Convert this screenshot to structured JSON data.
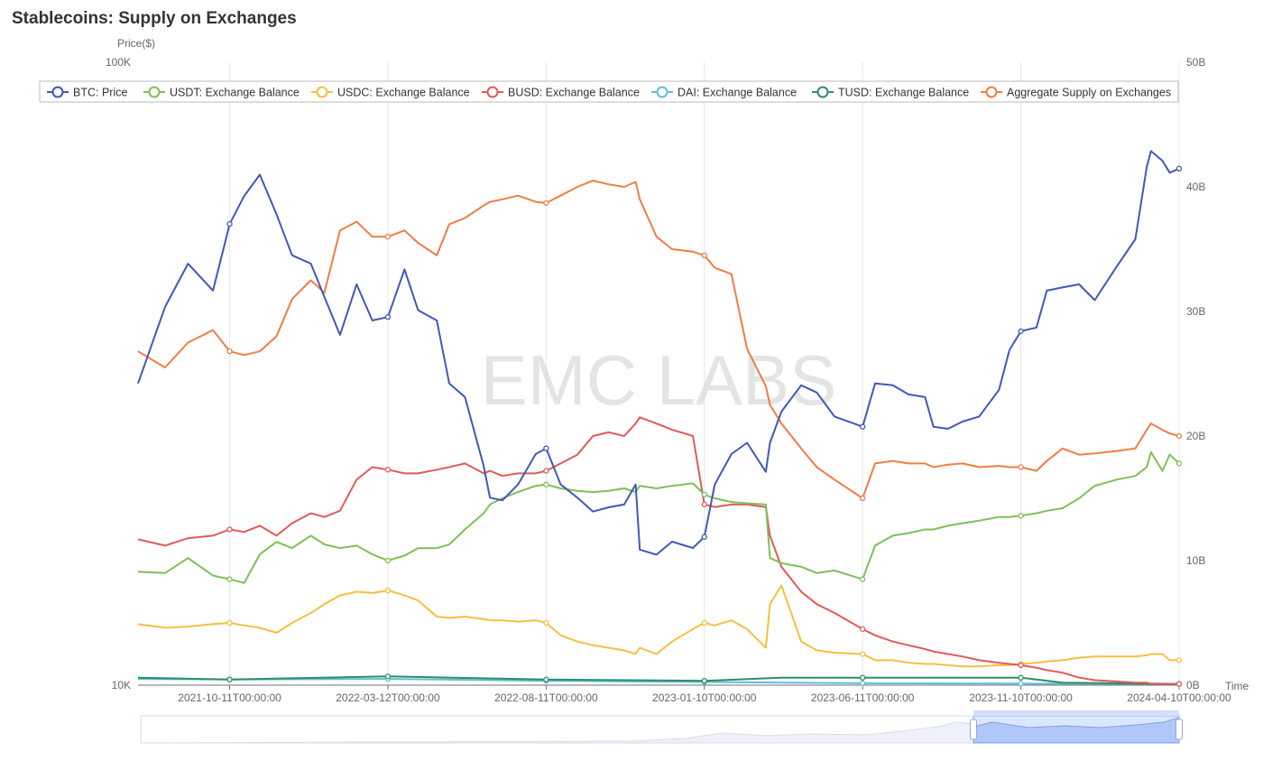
{
  "page": {
    "title": "Stablecoins: Supply on Exchanges",
    "watermark": "EMC LABS"
  },
  "chart_data": {
    "type": "line",
    "title": "Stablecoins: Supply on Exchanges",
    "xlabel": "Time",
    "ylabel_left": "Price($)",
    "y_left": {
      "scale": "log",
      "range": [
        10000,
        100000
      ],
      "ticks": [
        "10K",
        "100K"
      ]
    },
    "y_right": {
      "scale": "linear",
      "range": [
        0,
        50
      ],
      "unit": "B",
      "ticks": [
        "0B",
        "10B",
        "20B",
        "30B",
        "40B",
        "50B"
      ]
    },
    "x_ticks": [
      "2021-10-11T00:00:00",
      "2022-03-12T00:00:00",
      "2022-08-11T00:00:00",
      "2023-01-10T00:00:00",
      "2023-06-11T00:00:00",
      "2023-11-10T00:00:00",
      "2024-04-10T00:00:00"
    ],
    "x_range": [
      "2021-07-15",
      "2024-04-10"
    ],
    "grid": "vertical",
    "legend_position": "top",
    "colors": {
      "btc": "#4059b5",
      "usdt": "#7ec058",
      "usdc": "#f5bf3f",
      "busd": "#e05a5a",
      "dai": "#5fbfd9",
      "tusd": "#2e8f66",
      "agg": "#f07d45"
    },
    "series": [
      {
        "name": "BTC: Price",
        "axis": "left",
        "color": "#4059b5",
        "x": [
          "2021-07-15",
          "2021-08-10",
          "2021-09-01",
          "2021-09-25",
          "2021-10-11",
          "2021-10-25",
          "2021-11-09",
          "2021-11-25",
          "2021-12-10",
          "2021-12-28",
          "2022-01-10",
          "2022-01-25",
          "2022-02-10",
          "2022-02-25",
          "2022-03-12",
          "2022-03-28",
          "2022-04-10",
          "2022-04-28",
          "2022-05-10",
          "2022-05-25",
          "2022-06-12",
          "2022-06-18",
          "2022-06-30",
          "2022-07-15",
          "2022-08-01",
          "2022-08-11",
          "2022-08-25",
          "2022-09-10",
          "2022-09-25",
          "2022-10-10",
          "2022-10-25",
          "2022-11-05",
          "2022-11-09",
          "2022-11-25",
          "2022-12-10",
          "2022-12-30",
          "2023-01-10",
          "2023-01-20",
          "2023-02-05",
          "2023-02-20",
          "2023-03-10",
          "2023-03-14",
          "2023-03-25",
          "2023-04-13",
          "2023-04-28",
          "2023-05-15",
          "2023-06-11",
          "2023-06-23",
          "2023-07-10",
          "2023-07-25",
          "2023-08-10",
          "2023-08-18",
          "2023-09-01",
          "2023-09-15",
          "2023-10-01",
          "2023-10-20",
          "2023-10-30",
          "2023-11-10",
          "2023-11-25",
          "2023-12-05",
          "2023-12-20",
          "2024-01-05",
          "2024-01-20",
          "2024-02-10",
          "2024-02-28",
          "2024-03-10",
          "2024-03-14",
          "2024-03-25",
          "2024-04-01",
          "2024-04-10"
        ],
        "values": [
          30500,
          40500,
          47500,
          43000,
          55000,
          61000,
          66000,
          57000,
          49000,
          47500,
          42000,
          36500,
          44000,
          38500,
          39000,
          46500,
          40000,
          38500,
          30500,
          29000,
          22500,
          20000,
          19800,
          21000,
          23500,
          24000,
          21000,
          20000,
          19000,
          19300,
          19500,
          21000,
          16500,
          16200,
          17000,
          16600,
          17300,
          21000,
          23500,
          24500,
          22000,
          24500,
          27500,
          30300,
          29500,
          27000,
          26000,
          30500,
          30300,
          29300,
          29000,
          26000,
          25800,
          26500,
          27000,
          29800,
          34500,
          37000,
          37500,
          43000,
          43500,
          44000,
          41500,
          47000,
          52000,
          68000,
          72000,
          69500,
          66500,
          67500
        ]
      },
      {
        "name": "USDT: Exchange Balance",
        "axis": "right",
        "color": "#7ec058",
        "x": [
          "2021-07-15",
          "2021-08-10",
          "2021-09-01",
          "2021-09-25",
          "2021-10-11",
          "2021-10-25",
          "2021-11-09",
          "2021-11-25",
          "2021-12-10",
          "2021-12-28",
          "2022-01-10",
          "2022-01-25",
          "2022-02-10",
          "2022-02-25",
          "2022-03-12",
          "2022-03-28",
          "2022-04-10",
          "2022-04-28",
          "2022-05-10",
          "2022-05-25",
          "2022-06-12",
          "2022-06-18",
          "2022-06-30",
          "2022-07-15",
          "2022-08-01",
          "2022-08-11",
          "2022-08-25",
          "2022-09-10",
          "2022-09-25",
          "2022-10-10",
          "2022-10-25",
          "2022-11-05",
          "2022-11-09",
          "2022-11-25",
          "2022-12-10",
          "2022-12-30",
          "2023-01-10",
          "2023-01-20",
          "2023-02-05",
          "2023-02-20",
          "2023-03-10",
          "2023-03-14",
          "2023-03-25",
          "2023-04-13",
          "2023-04-28",
          "2023-05-15",
          "2023-06-11",
          "2023-06-23",
          "2023-07-10",
          "2023-07-25",
          "2023-08-10",
          "2023-08-18",
          "2023-09-01",
          "2023-09-15",
          "2023-10-01",
          "2023-10-20",
          "2023-10-30",
          "2023-11-10",
          "2023-11-25",
          "2023-12-05",
          "2023-12-20",
          "2024-01-05",
          "2024-01-20",
          "2024-02-10",
          "2024-02-28",
          "2024-03-10",
          "2024-03-14",
          "2024-03-25",
          "2024-04-01",
          "2024-04-10"
        ],
        "values": [
          9.1,
          9.0,
          10.2,
          8.8,
          8.5,
          8.2,
          10.5,
          11.5,
          11.0,
          12.0,
          11.3,
          11.0,
          11.2,
          10.5,
          10.0,
          10.4,
          11.0,
          11.0,
          11.3,
          12.5,
          13.8,
          14.5,
          15.0,
          15.5,
          16.0,
          16.1,
          15.8,
          15.6,
          15.5,
          15.6,
          15.8,
          15.5,
          16.0,
          15.8,
          16.0,
          16.2,
          15.3,
          15.0,
          14.7,
          14.6,
          14.5,
          10.2,
          9.8,
          9.5,
          9.0,
          9.2,
          8.5,
          11.2,
          12.0,
          12.2,
          12.5,
          12.5,
          12.8,
          13.0,
          13.2,
          13.5,
          13.5,
          13.6,
          13.8,
          14.0,
          14.2,
          15.0,
          16.0,
          16.5,
          16.8,
          17.5,
          18.7,
          17.2,
          18.5,
          17.8
        ]
      },
      {
        "name": "USDC: Exchange Balance",
        "axis": "right",
        "color": "#f5bf3f",
        "x": [
          "2021-07-15",
          "2021-08-10",
          "2021-09-01",
          "2021-09-25",
          "2021-10-11",
          "2021-10-25",
          "2021-11-09",
          "2021-11-25",
          "2021-12-10",
          "2021-12-28",
          "2022-01-10",
          "2022-01-25",
          "2022-02-10",
          "2022-02-25",
          "2022-03-12",
          "2022-03-28",
          "2022-04-10",
          "2022-04-28",
          "2022-05-10",
          "2022-05-25",
          "2022-06-12",
          "2022-06-18",
          "2022-06-30",
          "2022-07-15",
          "2022-08-01",
          "2022-08-11",
          "2022-08-25",
          "2022-09-10",
          "2022-09-25",
          "2022-10-10",
          "2022-10-25",
          "2022-11-05",
          "2022-11-09",
          "2022-11-25",
          "2022-12-10",
          "2022-12-30",
          "2023-01-10",
          "2023-01-20",
          "2023-02-05",
          "2023-02-20",
          "2023-03-10",
          "2023-03-14",
          "2023-03-25",
          "2023-04-13",
          "2023-04-28",
          "2023-05-15",
          "2023-06-11",
          "2023-06-23",
          "2023-07-10",
          "2023-07-25",
          "2023-08-10",
          "2023-08-18",
          "2023-09-01",
          "2023-09-15",
          "2023-10-01",
          "2023-10-20",
          "2023-10-30",
          "2023-11-10",
          "2023-11-25",
          "2023-12-05",
          "2023-12-20",
          "2024-01-05",
          "2024-01-20",
          "2024-02-10",
          "2024-02-28",
          "2024-03-10",
          "2024-03-14",
          "2024-03-25",
          "2024-04-01",
          "2024-04-10"
        ],
        "values": [
          4.9,
          4.6,
          4.7,
          4.9,
          5.0,
          4.8,
          4.6,
          4.2,
          5.0,
          5.8,
          6.5,
          7.2,
          7.5,
          7.4,
          7.6,
          7.2,
          6.8,
          5.5,
          5.4,
          5.5,
          5.3,
          5.2,
          5.2,
          5.1,
          5.2,
          5.0,
          4.0,
          3.5,
          3.2,
          3.0,
          2.8,
          2.5,
          3.0,
          2.5,
          3.5,
          4.5,
          5.0,
          4.8,
          5.2,
          4.5,
          3.0,
          6.5,
          8.0,
          3.5,
          2.8,
          2.6,
          2.5,
          2.0,
          2.0,
          1.8,
          1.7,
          1.7,
          1.6,
          1.5,
          1.5,
          1.6,
          1.6,
          1.7,
          1.8,
          1.9,
          2.0,
          2.2,
          2.3,
          2.3,
          2.3,
          2.4,
          2.5,
          2.5,
          2.0,
          2.0
        ]
      },
      {
        "name": "BUSD: Exchange Balance",
        "axis": "right",
        "color": "#e05a5a",
        "x": [
          "2021-07-15",
          "2021-08-10",
          "2021-09-01",
          "2021-09-25",
          "2021-10-11",
          "2021-10-25",
          "2021-11-09",
          "2021-11-25",
          "2021-12-10",
          "2021-12-28",
          "2022-01-10",
          "2022-01-25",
          "2022-02-10",
          "2022-02-25",
          "2022-03-12",
          "2022-03-28",
          "2022-04-10",
          "2022-04-28",
          "2022-05-10",
          "2022-05-25",
          "2022-06-12",
          "2022-06-18",
          "2022-06-30",
          "2022-07-15",
          "2022-08-01",
          "2022-08-11",
          "2022-08-25",
          "2022-09-10",
          "2022-09-25",
          "2022-10-10",
          "2022-10-25",
          "2022-11-05",
          "2022-11-09",
          "2022-11-25",
          "2022-12-10",
          "2022-12-30",
          "2023-01-10",
          "2023-01-20",
          "2023-02-05",
          "2023-02-20",
          "2023-03-10",
          "2023-03-14",
          "2023-03-25",
          "2023-04-13",
          "2023-04-28",
          "2023-05-15",
          "2023-06-11",
          "2023-06-23",
          "2023-07-10",
          "2023-07-25",
          "2023-08-10",
          "2023-08-18",
          "2023-09-01",
          "2023-09-15",
          "2023-10-01",
          "2023-10-20",
          "2023-10-30",
          "2023-11-10",
          "2023-11-25",
          "2023-12-05",
          "2023-12-20",
          "2024-01-05",
          "2024-01-20",
          "2024-02-10",
          "2024-02-28",
          "2024-03-10",
          "2024-03-14",
          "2024-03-25",
          "2024-04-01",
          "2024-04-10"
        ],
        "values": [
          11.7,
          11.2,
          11.8,
          12.0,
          12.5,
          12.3,
          12.8,
          12.0,
          13.0,
          13.8,
          13.5,
          14.0,
          16.5,
          17.5,
          17.3,
          17.0,
          17.0,
          17.3,
          17.5,
          17.8,
          17.0,
          17.2,
          16.8,
          17.0,
          17.0,
          17.2,
          17.8,
          18.5,
          20.0,
          20.3,
          20.0,
          21.0,
          21.5,
          21.0,
          20.5,
          20.0,
          14.5,
          14.3,
          14.5,
          14.5,
          14.3,
          12.0,
          9.5,
          7.5,
          6.5,
          5.8,
          4.5,
          4.0,
          3.5,
          3.2,
          2.9,
          2.7,
          2.5,
          2.3,
          2.0,
          1.8,
          1.7,
          1.6,
          1.4,
          1.2,
          1.0,
          0.6,
          0.4,
          0.3,
          0.2,
          0.2,
          0.1,
          0.1,
          0.1,
          0.1
        ]
      },
      {
        "name": "DAI: Exchange Balance",
        "axis": "right",
        "color": "#5fbfd9",
        "x": [
          "2021-07-15",
          "2021-10-11",
          "2022-03-12",
          "2022-08-11",
          "2023-01-10",
          "2023-06-11",
          "2023-11-10",
          "2024-04-10"
        ],
        "values": [
          0.5,
          0.45,
          0.5,
          0.35,
          0.25,
          0.15,
          0.12,
          0.1
        ]
      },
      {
        "name": "TUSD: Exchange Balance",
        "axis": "right",
        "color": "#2e8f66",
        "x": [
          "2021-07-15",
          "2021-10-11",
          "2022-03-12",
          "2022-08-11",
          "2023-01-10",
          "2023-03-25",
          "2023-06-11",
          "2023-11-10",
          "2023-12-20",
          "2024-04-10"
        ],
        "values": [
          0.6,
          0.45,
          0.7,
          0.45,
          0.35,
          0.6,
          0.6,
          0.6,
          0.2,
          0.1
        ]
      },
      {
        "name": "Aggregate Supply on Exchanges",
        "axis": "right",
        "color": "#f07d45",
        "x": [
          "2021-07-15",
          "2021-08-10",
          "2021-09-01",
          "2021-09-25",
          "2021-10-11",
          "2021-10-25",
          "2021-11-09",
          "2021-11-25",
          "2021-12-10",
          "2021-12-28",
          "2022-01-10",
          "2022-01-25",
          "2022-02-10",
          "2022-02-25",
          "2022-03-12",
          "2022-03-28",
          "2022-04-10",
          "2022-04-28",
          "2022-05-10",
          "2022-05-25",
          "2022-06-12",
          "2022-06-18",
          "2022-06-30",
          "2022-07-15",
          "2022-08-01",
          "2022-08-11",
          "2022-08-25",
          "2022-09-10",
          "2022-09-25",
          "2022-10-10",
          "2022-10-25",
          "2022-11-05",
          "2022-11-09",
          "2022-11-25",
          "2022-12-10",
          "2022-12-30",
          "2023-01-10",
          "2023-01-20",
          "2023-02-05",
          "2023-02-20",
          "2023-03-10",
          "2023-03-14",
          "2023-03-25",
          "2023-04-13",
          "2023-04-28",
          "2023-05-15",
          "2023-06-11",
          "2023-06-23",
          "2023-07-10",
          "2023-07-25",
          "2023-08-10",
          "2023-08-18",
          "2023-09-01",
          "2023-09-15",
          "2023-10-01",
          "2023-10-20",
          "2023-10-30",
          "2023-11-10",
          "2023-11-25",
          "2023-12-05",
          "2023-12-20",
          "2024-01-05",
          "2024-01-20",
          "2024-02-10",
          "2024-02-28",
          "2024-03-10",
          "2024-03-14",
          "2024-03-25",
          "2024-04-01",
          "2024-04-10"
        ],
        "values": [
          26.8,
          25.5,
          27.5,
          28.5,
          26.8,
          26.5,
          26.8,
          28.0,
          31.0,
          32.5,
          31.5,
          36.5,
          37.2,
          36.0,
          36.0,
          36.5,
          35.5,
          34.5,
          37.0,
          37.5,
          38.5,
          38.8,
          39.0,
          39.3,
          38.8,
          38.7,
          39.3,
          40.0,
          40.5,
          40.2,
          40.0,
          40.4,
          39.0,
          36.0,
          35.0,
          34.8,
          34.5,
          33.5,
          33.0,
          27.0,
          24.0,
          22.5,
          21.0,
          19.0,
          17.5,
          16.5,
          15.0,
          17.8,
          18.0,
          17.8,
          17.8,
          17.5,
          17.7,
          17.8,
          17.5,
          17.6,
          17.5,
          17.5,
          17.2,
          18.0,
          19.0,
          18.5,
          18.6,
          18.8,
          19.0,
          20.5,
          21.0,
          20.5,
          20.2,
          20.0
        ]
      }
    ],
    "markers_on": [
      "2021-10-11",
      "2022-03-12",
      "2022-08-11",
      "2023-01-10",
      "2023-06-11",
      "2023-11-10",
      "2024-04-10"
    ]
  }
}
